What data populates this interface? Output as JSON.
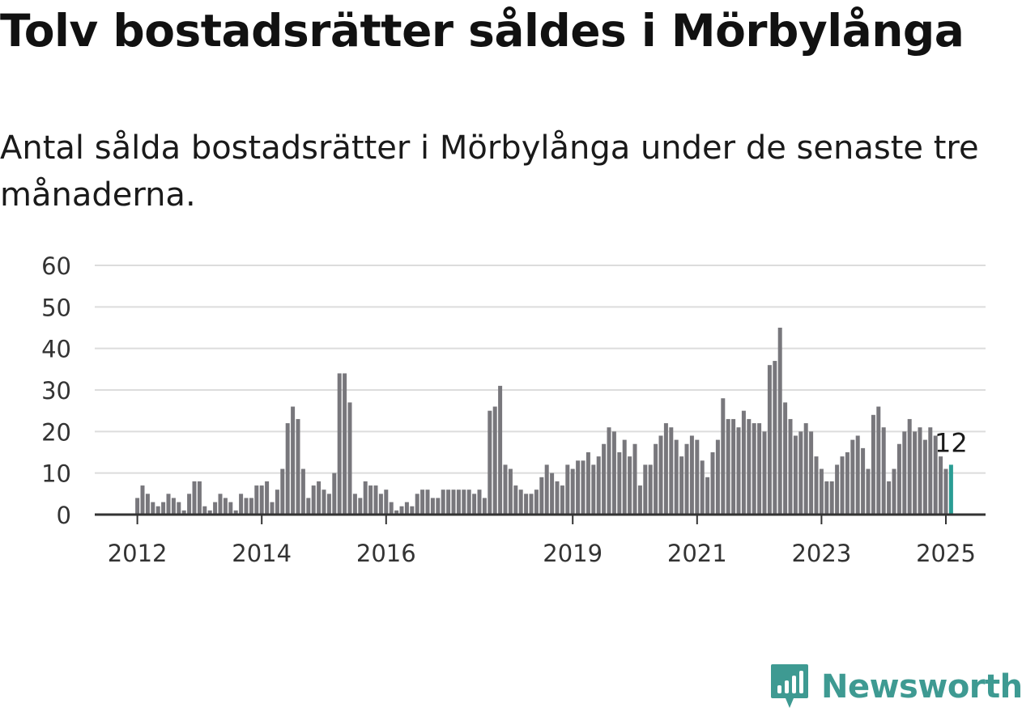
{
  "header": {
    "title": "Tolv bostadsrätter såldes i Mörbylånga",
    "subtitle": "Antal sålda bostadsrätter i Mörbylånga under de senaste tre månaderna."
  },
  "brand": {
    "name": "Newsworthy",
    "icon": "newsworthy-logo-icon",
    "color": "#3e9a92"
  },
  "chart_data": {
    "type": "bar",
    "start": "2012-01",
    "x_ticks": [
      "2012",
      "2014",
      "2016",
      "2019",
      "2021",
      "2023",
      "2025"
    ],
    "y_ticks": [
      "0",
      "10",
      "20",
      "30",
      "40",
      "50",
      "60"
    ],
    "ylim": [
      0,
      60
    ],
    "grid": true,
    "bar_color": "#78777c",
    "highlight_color": "#2a9d94",
    "highlight_label": "12",
    "values": [
      4,
      7,
      5,
      3,
      2,
      3,
      5,
      4,
      3,
      1,
      5,
      8,
      8,
      2,
      1,
      3,
      5,
      4,
      3,
      1,
      5,
      4,
      4,
      7,
      7,
      8,
      3,
      6,
      11,
      22,
      26,
      23,
      11,
      4,
      7,
      8,
      6,
      5,
      10,
      34,
      34,
      27,
      5,
      4,
      8,
      7,
      7,
      5,
      6,
      3,
      1,
      2,
      3,
      2,
      5,
      6,
      6,
      4,
      4,
      6,
      6,
      6,
      6,
      6,
      6,
      5,
      6,
      4,
      25,
      26,
      31,
      12,
      11,
      7,
      6,
      5,
      5,
      6,
      9,
      12,
      10,
      8,
      7,
      12,
      11,
      13,
      13,
      15,
      12,
      14,
      17,
      21,
      20,
      15,
      18,
      14,
      17,
      7,
      12,
      12,
      17,
      19,
      22,
      21,
      18,
      14,
      17,
      19,
      18,
      13,
      9,
      15,
      18,
      28,
      23,
      23,
      21,
      25,
      23,
      22,
      22,
      20,
      36,
      37,
      45,
      27,
      23,
      19,
      20,
      22,
      20,
      14,
      11,
      8,
      8,
      12,
      14,
      15,
      18,
      19,
      16,
      11,
      24,
      26,
      21,
      8,
      11,
      17,
      20,
      23,
      20,
      21,
      18,
      21,
      19,
      14,
      11,
      12
    ]
  }
}
